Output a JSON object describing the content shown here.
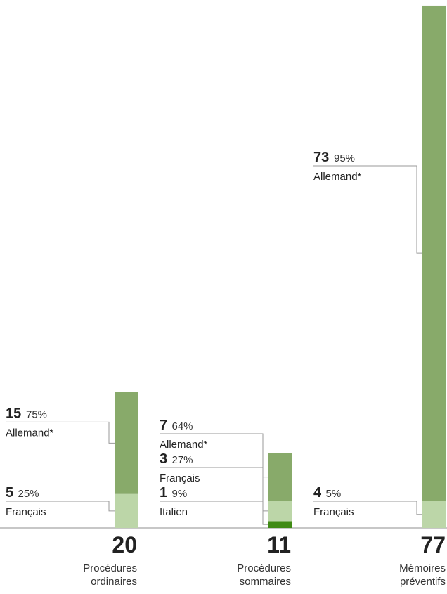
{
  "chart_data": {
    "type": "bar",
    "stacked": true,
    "colors": {
      "Allemand": "#88aa6a",
      "Français": "#bcd6a8",
      "Italien": "#3f8a14"
    },
    "groups": [
      {
        "total": "20",
        "category_lines": [
          "Procédures",
          "ordinaires"
        ],
        "segments": [
          {
            "language": "Français",
            "label": "Français",
            "value": 5,
            "value_text": "5",
            "pct_text": "25%"
          },
          {
            "language": "Allemand",
            "label": "Allemand*",
            "value": 15,
            "value_text": "15",
            "pct_text": "75%"
          }
        ]
      },
      {
        "total": "11",
        "category_lines": [
          "Procédures",
          "sommaires"
        ],
        "segments": [
          {
            "language": "Italien",
            "label": "Italien",
            "value": 1,
            "value_text": "1",
            "pct_text": "9%"
          },
          {
            "language": "Français",
            "label": "Français",
            "value": 3,
            "value_text": "3",
            "pct_text": "27%"
          },
          {
            "language": "Allemand",
            "label": "Allemand*",
            "value": 7,
            "value_text": "7",
            "pct_text": "64%"
          }
        ]
      },
      {
        "total": "77",
        "category_lines": [
          "Mémoires",
          "préventifs"
        ],
        "segments": [
          {
            "language": "Français",
            "label": "Français",
            "value": 4,
            "value_text": "4",
            "pct_text": "5%"
          },
          {
            "language": "Allemand",
            "label": "Allemand*",
            "value": 73,
            "value_text": "73",
            "pct_text": "95%"
          }
        ]
      }
    ]
  }
}
